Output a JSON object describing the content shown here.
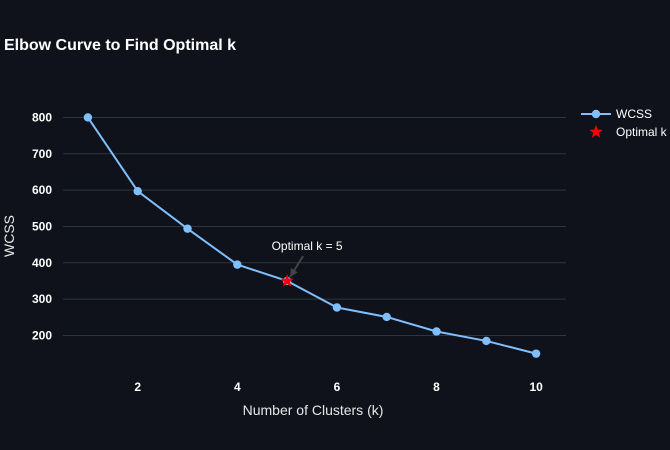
{
  "chart_data": {
    "type": "line",
    "title": "Elbow Curve to Find Optimal k",
    "xlabel": "Number of Clusters (k)",
    "ylabel": "WCSS",
    "x": [
      1,
      2,
      3,
      4,
      5,
      6,
      7,
      8,
      9,
      10
    ],
    "series": [
      {
        "name": "WCSS",
        "values": [
          800,
          597,
          494,
          395,
          350,
          277,
          251,
          211,
          185,
          150
        ],
        "color": "#7fbfff",
        "marker": "circle"
      },
      {
        "name": "Optimal k",
        "x": [
          5
        ],
        "values": [
          350
        ],
        "color": "#ff0000",
        "marker": "star"
      }
    ],
    "xticks": [
      2,
      4,
      6,
      8,
      10
    ],
    "yticks": [
      200,
      300,
      400,
      500,
      600,
      700,
      800
    ],
    "xlim": [
      0.5,
      10.6
    ],
    "ylim": [
      105,
      870
    ],
    "grid": true,
    "legend_position": "top-right",
    "annotations": [
      {
        "text": "Optimal k = 5",
        "x": 5,
        "y": 350,
        "arrow": true
      }
    ]
  }
}
